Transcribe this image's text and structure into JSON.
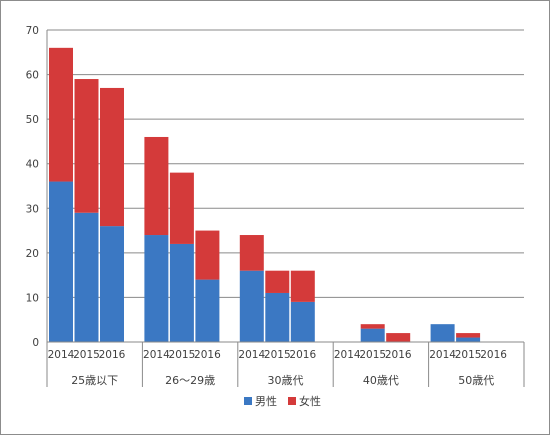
{
  "chart_data": {
    "type": "bar",
    "stacked": true,
    "title": "",
    "xlabel": "",
    "ylabel": "",
    "ylim": [
      0,
      70
    ],
    "yticks": [
      0,
      10,
      20,
      30,
      40,
      50,
      60,
      70
    ],
    "grid": true,
    "legend_position": "bottom",
    "groups": [
      {
        "label": "25歳以下",
        "years": [
          "2014",
          "2015",
          "2016"
        ],
        "male": [
          36,
          29,
          26
        ],
        "female": [
          30,
          30,
          31
        ]
      },
      {
        "label": "26～29歳",
        "years": [
          "2014",
          "2015",
          "2016"
        ],
        "male": [
          24,
          22,
          14
        ],
        "female": [
          22,
          16,
          11
        ]
      },
      {
        "label": "30歳代",
        "years": [
          "2014",
          "2015",
          "2016"
        ],
        "male": [
          16,
          11,
          9
        ],
        "female": [
          8,
          5,
          7
        ]
      },
      {
        "label": "40歳代",
        "years": [
          "2014",
          "2015",
          "2016"
        ],
        "male": [
          0,
          3,
          0
        ],
        "female": [
          0,
          1,
          2
        ]
      },
      {
        "label": "50歳代",
        "years": [
          "2014",
          "2015",
          "2016"
        ],
        "male": [
          4,
          1,
          0
        ],
        "female": [
          0,
          1,
          0
        ]
      }
    ],
    "series": [
      {
        "name": "男性",
        "color": "#3b78c3"
      },
      {
        "name": "女性",
        "color": "#d43a3a"
      }
    ]
  }
}
